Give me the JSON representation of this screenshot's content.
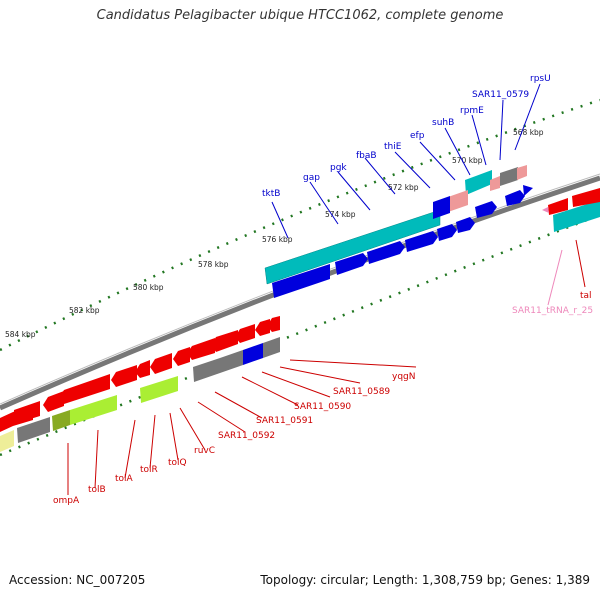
{
  "title": "Candidatus Pelagibacter ubique HTCC1062, complete genome",
  "footer": {
    "accession": "Accession: NC_007205",
    "summary": "Topology: circular; Length: 1,308,759 bp; Genes: 1,389"
  },
  "colors": {
    "forward_cds": "#0000dd",
    "reverse_cds": "#ee0000",
    "forward_gene": "#00bbbb",
    "reverse_gene": "#777777",
    "trna": "#ee9999",
    "highlight": "#aaee33",
    "backbone": "#888888",
    "ticks": "#227722",
    "label_forward": "#0000cc",
    "label_reverse": "#cc0000",
    "label_trna": "#ee88bb"
  },
  "position_labels": [
    "568 kbp",
    "570 kbp",
    "572 kbp",
    "574 kbp",
    "576 kbp",
    "578 kbp",
    "580 kbp",
    "582 kbp",
    "584 kbp"
  ],
  "forward_labels": [
    "rpsU",
    "SAR11_0579",
    "rpmE",
    "suhB",
    "efp",
    "thiE",
    "fbaB",
    "pgk",
    "gap",
    "tktB"
  ],
  "reverse_labels": [
    "yqgN",
    "SAR11_0589",
    "SAR11_0590",
    "SAR11_0591",
    "SAR11_0592",
    "ruvC",
    "tolQ",
    "tolR",
    "tolA",
    "tolB",
    "ompA"
  ],
  "right_labels": [
    "SAR11_tRNA_r_25",
    "tal"
  ]
}
